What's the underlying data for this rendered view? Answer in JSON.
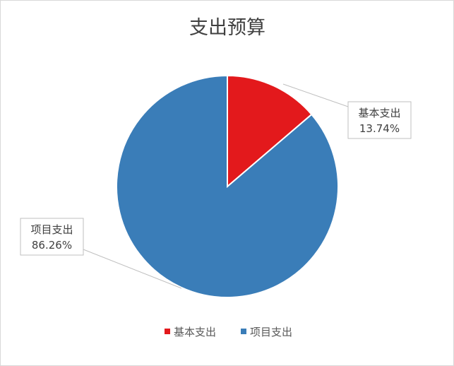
{
  "chart_data": {
    "type": "pie",
    "title": "支出预算",
    "categories": [
      "基本支出",
      "项目支出"
    ],
    "values": [
      13.74,
      86.26
    ],
    "value_labels": [
      "13.74%",
      "86.26%"
    ],
    "colors": [
      "#E3191C",
      "#3A7DB8"
    ],
    "start_angle": "top, clockwise",
    "legend": "bottom"
  }
}
